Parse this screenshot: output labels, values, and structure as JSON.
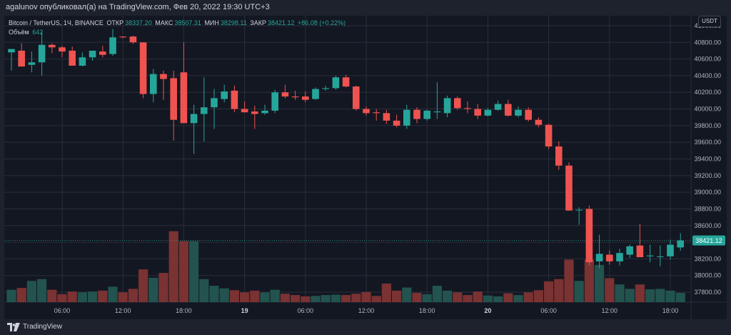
{
  "header": {
    "author_line": "agalunov опубликовал(а) на TradingView.com, Фев 20, 2022 19:30 UTC+3"
  },
  "legend": {
    "symbol": "Bitcoin / TetherUS, 1Ч, BINANCE",
    "open_label": "ОТКР",
    "open_value": "38337.20",
    "high_label": "МАКС",
    "high_value": "38507.31",
    "low_label": "МИН",
    "low_value": "38298.11",
    "close_label": "ЗАКР",
    "close_value": "38421.12",
    "change": "+86.08 (+0.22%)",
    "volume_label": "Объём",
    "volume_value": "642"
  },
  "currency_button": "USDT",
  "footer": {
    "brand": "TradingView"
  },
  "colors": {
    "up": "#26a69a",
    "down": "#ef5350",
    "up_volume": "#22534f",
    "down_volume": "#7a3232",
    "background": "#131722",
    "grid": "#2a2e39"
  },
  "chart_data": {
    "type": "candlestick",
    "symbol": "Bitcoin / TetherUS",
    "interval": "1Ч",
    "exchange": "BINANCE",
    "currency": "USDT",
    "ylim": [
      37680,
      41120
    ],
    "y_ticks": [
      "41000.00",
      "40800.00",
      "40600.00",
      "40400.00",
      "40200.00",
      "40000.00",
      "39800.00",
      "39600.00",
      "39400.00",
      "39200.00",
      "39000.00",
      "38800.00",
      "38600.00",
      "38400.00",
      "38200.00",
      "38000.00",
      "37800.00"
    ],
    "x_ticks": [
      {
        "label": "06:00",
        "index": 5
      },
      {
        "label": "12:00",
        "index": 11
      },
      {
        "label": "18:00",
        "index": 17
      },
      {
        "label": "19",
        "index": 23
      },
      {
        "label": "06:00",
        "index": 29
      },
      {
        "label": "12:00",
        "index": 35
      },
      {
        "label": "18:00",
        "index": 41
      },
      {
        "label": "20",
        "index": 47
      },
      {
        "label": "06:00",
        "index": 53
      },
      {
        "label": "12:00",
        "index": 59
      },
      {
        "label": "18:00",
        "index": 65
      }
    ],
    "last_price": "38421.12",
    "last_price_value": 38421.12,
    "candles": [
      {
        "o": 40680,
        "h": 40720,
        "l": 40460,
        "c": 40720,
        "v": 0.28
      },
      {
        "o": 40700,
        "h": 40790,
        "l": 40510,
        "c": 40510,
        "v": 0.32
      },
      {
        "o": 40530,
        "h": 40690,
        "l": 40440,
        "c": 40560,
        "v": 0.48
      },
      {
        "o": 40560,
        "h": 40930,
        "l": 40400,
        "c": 40770,
        "v": 0.52
      },
      {
        "o": 40770,
        "h": 40790,
        "l": 40670,
        "c": 40740,
        "v": 0.28
      },
      {
        "o": 40740,
        "h": 40760,
        "l": 40620,
        "c": 40690,
        "v": 0.18
      },
      {
        "o": 40700,
        "h": 40750,
        "l": 40520,
        "c": 40520,
        "v": 0.24
      },
      {
        "o": 40520,
        "h": 40680,
        "l": 40510,
        "c": 40620,
        "v": 0.22
      },
      {
        "o": 40620,
        "h": 40700,
        "l": 40580,
        "c": 40700,
        "v": 0.24
      },
      {
        "o": 40690,
        "h": 40760,
        "l": 40620,
        "c": 40650,
        "v": 0.26
      },
      {
        "o": 40660,
        "h": 40960,
        "l": 40640,
        "c": 40860,
        "v": 0.35
      },
      {
        "o": 40870,
        "h": 40870,
        "l": 40850,
        "c": 40860,
        "v": 0.22
      },
      {
        "o": 40870,
        "h": 40880,
        "l": 40780,
        "c": 40800,
        "v": 0.3
      },
      {
        "o": 40800,
        "h": 40800,
        "l": 40130,
        "c": 40180,
        "v": 0.74
      },
      {
        "o": 40180,
        "h": 40480,
        "l": 40080,
        "c": 40420,
        "v": 0.55
      },
      {
        "o": 40420,
        "h": 40460,
        "l": 40110,
        "c": 40360,
        "v": 0.66
      },
      {
        "o": 40370,
        "h": 40460,
        "l": 39620,
        "c": 39870,
        "v": 1.6
      },
      {
        "o": 40440,
        "h": 40800,
        "l": 39830,
        "c": 39830,
        "v": 1.38
      },
      {
        "o": 39830,
        "h": 40050,
        "l": 39460,
        "c": 39940,
        "v": 1.38
      },
      {
        "o": 39940,
        "h": 40380,
        "l": 39610,
        "c": 40020,
        "v": 0.52
      },
      {
        "o": 40020,
        "h": 40240,
        "l": 39760,
        "c": 40130,
        "v": 0.37
      },
      {
        "o": 40120,
        "h": 40290,
        "l": 40080,
        "c": 40210,
        "v": 0.31
      },
      {
        "o": 40220,
        "h": 40280,
        "l": 39960,
        "c": 40000,
        "v": 0.27
      },
      {
        "o": 40000,
        "h": 40090,
        "l": 39960,
        "c": 39960,
        "v": 0.22
      },
      {
        "o": 39970,
        "h": 40040,
        "l": 39760,
        "c": 39940,
        "v": 0.26
      },
      {
        "o": 39950,
        "h": 40050,
        "l": 39930,
        "c": 39980,
        "v": 0.22
      },
      {
        "o": 39980,
        "h": 40230,
        "l": 39950,
        "c": 40200,
        "v": 0.28
      },
      {
        "o": 40200,
        "h": 40290,
        "l": 40130,
        "c": 40150,
        "v": 0.19
      },
      {
        "o": 40150,
        "h": 40220,
        "l": 40110,
        "c": 40140,
        "v": 0.16
      },
      {
        "o": 40150,
        "h": 40210,
        "l": 40080,
        "c": 40110,
        "v": 0.13
      },
      {
        "o": 40120,
        "h": 40260,
        "l": 40110,
        "c": 40240,
        "v": 0.14
      },
      {
        "o": 40240,
        "h": 40280,
        "l": 40220,
        "c": 40250,
        "v": 0.16
      },
      {
        "o": 40250,
        "h": 40400,
        "l": 40230,
        "c": 40380,
        "v": 0.17
      },
      {
        "o": 40380,
        "h": 40410,
        "l": 40260,
        "c": 40270,
        "v": 0.16
      },
      {
        "o": 40270,
        "h": 40280,
        "l": 39980,
        "c": 40000,
        "v": 0.19
      },
      {
        "o": 40000,
        "h": 40030,
        "l": 39920,
        "c": 39950,
        "v": 0.23
      },
      {
        "o": 39960,
        "h": 40000,
        "l": 39860,
        "c": 39950,
        "v": 0.14
      },
      {
        "o": 39950,
        "h": 39990,
        "l": 39820,
        "c": 39860,
        "v": 0.42
      },
      {
        "o": 39860,
        "h": 39930,
        "l": 39780,
        "c": 39800,
        "v": 0.26
      },
      {
        "o": 39800,
        "h": 40050,
        "l": 39760,
        "c": 39990,
        "v": 0.33
      },
      {
        "o": 39990,
        "h": 40020,
        "l": 39830,
        "c": 39880,
        "v": 0.21
      },
      {
        "o": 39880,
        "h": 39990,
        "l": 39860,
        "c": 39980,
        "v": 0.18
      },
      {
        "o": 39960,
        "h": 40320,
        "l": 39880,
        "c": 39970,
        "v": 0.37
      },
      {
        "o": 39950,
        "h": 40160,
        "l": 39900,
        "c": 40130,
        "v": 0.26
      },
      {
        "o": 40130,
        "h": 40150,
        "l": 39990,
        "c": 40010,
        "v": 0.22
      },
      {
        "o": 40010,
        "h": 40090,
        "l": 39950,
        "c": 40000,
        "v": 0.16
      },
      {
        "o": 40000,
        "h": 40060,
        "l": 39880,
        "c": 39920,
        "v": 0.24
      },
      {
        "o": 39920,
        "h": 40010,
        "l": 39910,
        "c": 39990,
        "v": 0.15
      },
      {
        "o": 39990,
        "h": 40100,
        "l": 39980,
        "c": 40060,
        "v": 0.13
      },
      {
        "o": 40060,
        "h": 40110,
        "l": 39910,
        "c": 39920,
        "v": 0.2
      },
      {
        "o": 39920,
        "h": 40030,
        "l": 39900,
        "c": 39990,
        "v": 0.16
      },
      {
        "o": 39990,
        "h": 40020,
        "l": 39850,
        "c": 39870,
        "v": 0.22
      },
      {
        "o": 39870,
        "h": 39900,
        "l": 39780,
        "c": 39810,
        "v": 0.27
      },
      {
        "o": 39810,
        "h": 39820,
        "l": 39520,
        "c": 39550,
        "v": 0.47
      },
      {
        "o": 39550,
        "h": 39610,
        "l": 39270,
        "c": 39320,
        "v": 0.52
      },
      {
        "o": 39320,
        "h": 39360,
        "l": 38780,
        "c": 38780,
        "v": 0.96
      },
      {
        "o": 38790,
        "h": 38820,
        "l": 38610,
        "c": 38790,
        "v": 0.48
      },
      {
        "o": 38800,
        "h": 38840,
        "l": 38120,
        "c": 38160,
        "v": 0.96
      },
      {
        "o": 38170,
        "h": 38490,
        "l": 38090,
        "c": 38260,
        "v": 0.84
      },
      {
        "o": 38250,
        "h": 38300,
        "l": 38130,
        "c": 38170,
        "v": 0.54
      },
      {
        "o": 38170,
        "h": 38320,
        "l": 38120,
        "c": 38270,
        "v": 0.4
      },
      {
        "o": 38250,
        "h": 38370,
        "l": 38210,
        "c": 38350,
        "v": 0.3
      },
      {
        "o": 38360,
        "h": 38620,
        "l": 38220,
        "c": 38220,
        "v": 0.4
      },
      {
        "o": 38230,
        "h": 38370,
        "l": 38160,
        "c": 38240,
        "v": 0.29
      },
      {
        "o": 38230,
        "h": 38360,
        "l": 38110,
        "c": 38230,
        "v": 0.3
      },
      {
        "o": 38230,
        "h": 38430,
        "l": 38190,
        "c": 38370,
        "v": 0.26
      },
      {
        "o": 38337.2,
        "h": 38507.31,
        "l": 38298.11,
        "c": 38421.12,
        "v": 0.21
      }
    ]
  }
}
